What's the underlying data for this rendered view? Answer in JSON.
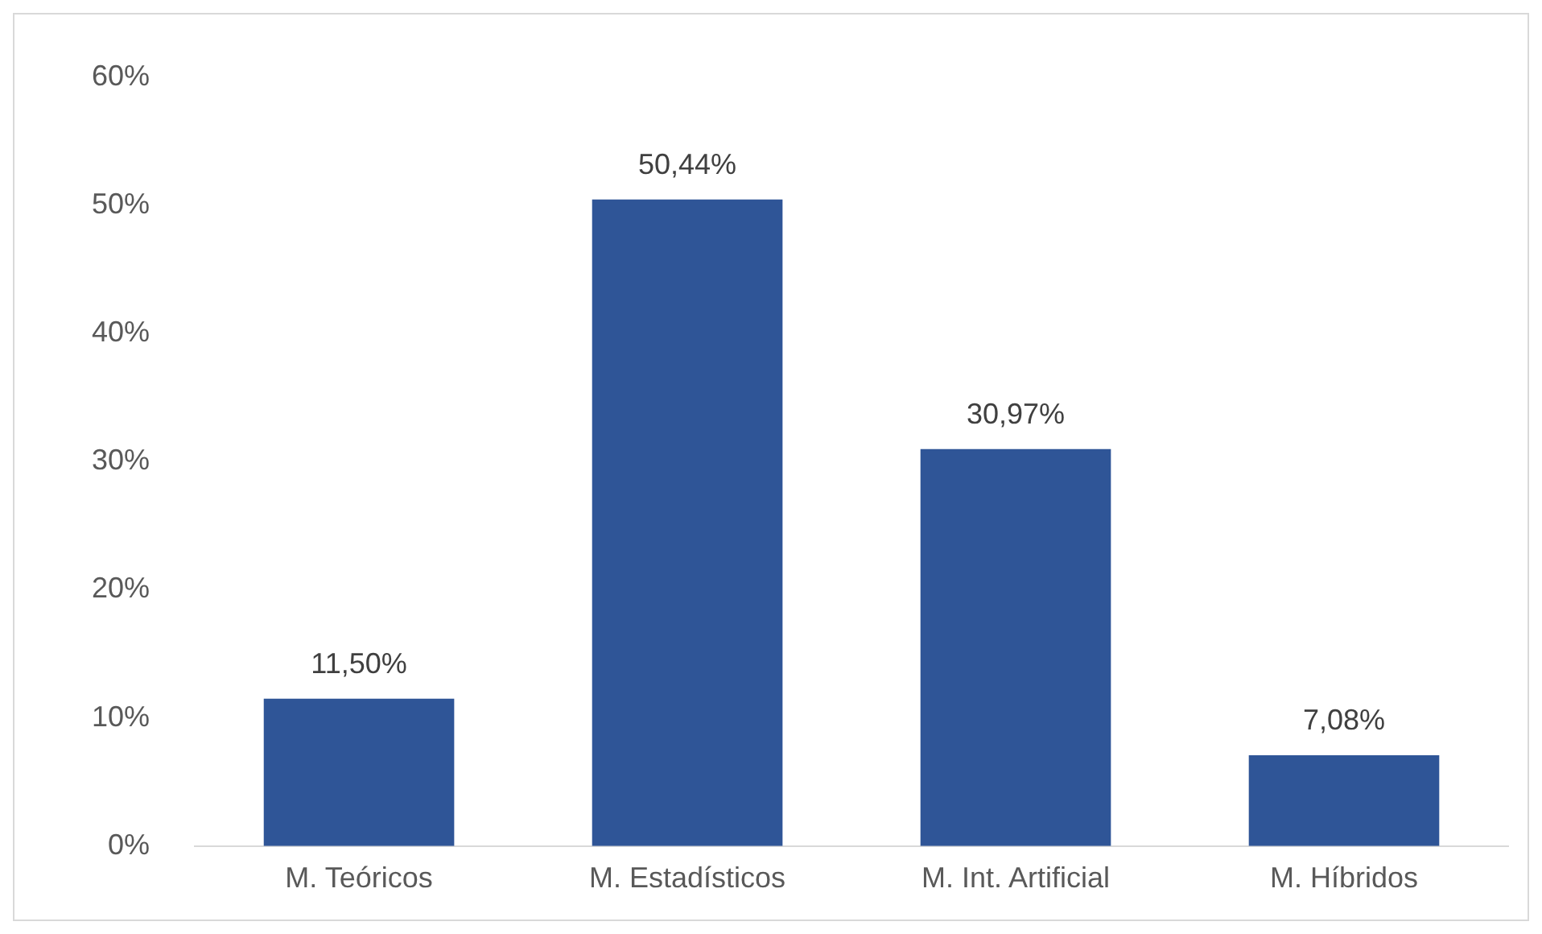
{
  "chart_data": {
    "type": "bar",
    "categories": [
      "M. Teóricos",
      "M. Estadísticos",
      "M. Int. Artificial",
      "M. Híbridos"
    ],
    "values": [
      11.5,
      50.44,
      30.97,
      7.08
    ],
    "value_labels": [
      "11,50%",
      "50,44%",
      "30,97%",
      "7,08%"
    ],
    "color": "#2f5597",
    "ylim": [
      0,
      60
    ],
    "yticks": [
      {
        "value": 0,
        "label": "0%"
      },
      {
        "value": 10,
        "label": "10%"
      },
      {
        "value": 20,
        "label": "20%"
      },
      {
        "value": 30,
        "label": "30%"
      },
      {
        "value": 40,
        "label": "40%"
      },
      {
        "value": 50,
        "label": "50%"
      },
      {
        "value": 60,
        "label": "60%"
      }
    ],
    "grid": false,
    "legend": false
  }
}
